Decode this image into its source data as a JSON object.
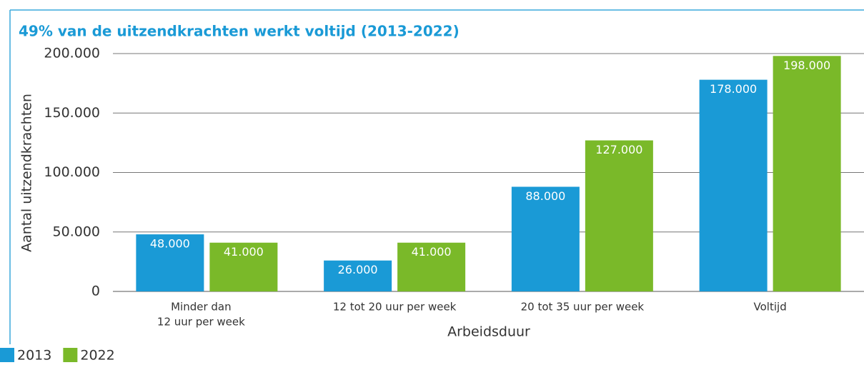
{
  "chart_data": {
    "type": "bar",
    "title": "49% van de uitzendkrachten werkt voltijd (2013-2022)",
    "y_label": "Aantal uitzendkrachten",
    "x_label": "Arbeidsduur",
    "categories": [
      [
        "Minder dan",
        "12 uur per week"
      ],
      "12 tot 20 uur per week",
      "20 tot 35 uur per week",
      "Voltijd"
    ],
    "series": [
      {
        "name": "2013",
        "color": "#1a9ad6",
        "values": [
          48000,
          26000,
          88000,
          178000
        ],
        "value_labels": [
          "48.000",
          "26.000",
          "88.000",
          "178.000"
        ]
      },
      {
        "name": "2022",
        "color": "#7ab929",
        "values": [
          41000,
          41000,
          127000,
          198000
        ],
        "value_labels": [
          "41.000",
          "41.000",
          "127.000",
          "198.000"
        ]
      }
    ],
    "ylim": [
      0,
      200000
    ],
    "yticks": [
      0,
      {
        "value": 50000,
        "label": "50.000"
      },
      {
        "value": 100000,
        "label": "100.000"
      },
      {
        "value": 150000,
        "label": "150.000"
      },
      {
        "value": 200000,
        "label": "200.000"
      }
    ],
    "grid": true
  }
}
